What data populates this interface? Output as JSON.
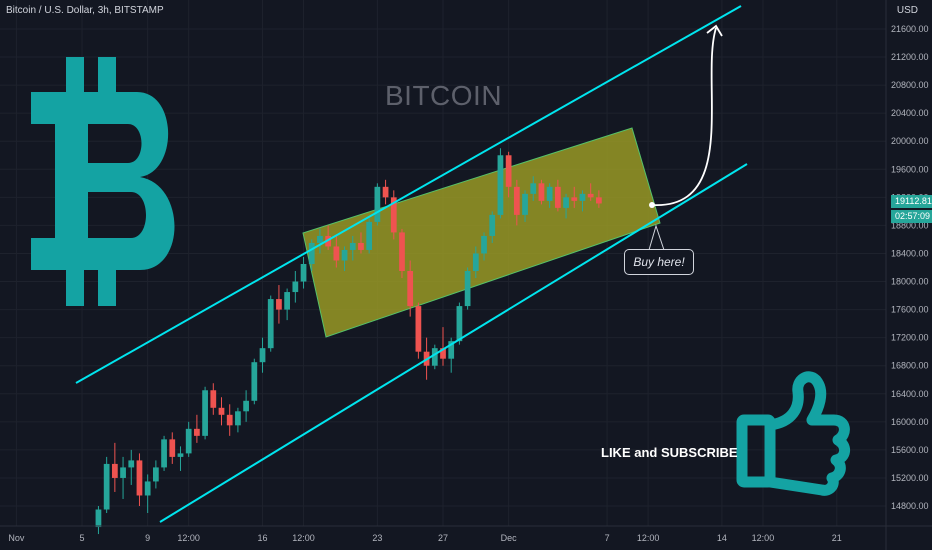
{
  "header": {
    "symbol": "Bitcoin / U.S. Dollar, 3h, BITSTAMP",
    "currency": "USD"
  },
  "annotations": {
    "watermark": "BITCOIN",
    "callout": "Buy here!",
    "cta": "LIKE and SUBSCRIBE"
  },
  "price_tags": {
    "last_price": "19112.81",
    "countdown": "02:57:09"
  },
  "colors": {
    "background": "#131722",
    "up": "#26a69a",
    "down": "#ef5350",
    "channel": "#00e5ee",
    "box_fill": "#9e9d24",
    "logo": "#14a3a3"
  },
  "icons": [
    "bitcoin-logo-icon",
    "thumbs-up-icon",
    "arrow-up-icon"
  ],
  "chart_data": {
    "type": "candlestick",
    "title": "Bitcoin / U.S. Dollar, 3h, BITSTAMP",
    "y_unit": "USD",
    "ylim": [
      14480,
      22000
    ],
    "y_ticks": [
      "21600.00",
      "21200.00",
      "20800.00",
      "20400.00",
      "20000.00",
      "19600.00",
      "19200.00",
      "18800.00",
      "18400.00",
      "18000.00",
      "17600.00",
      "17200.00",
      "16800.00",
      "16400.00",
      "16000.00",
      "15600.00",
      "15200.00",
      "14800.00"
    ],
    "x_ticks": [
      "Nov",
      "5",
      "9",
      "12:00",
      "16",
      "12:00",
      "23",
      "27",
      "Dec",
      "7",
      "12:00",
      "14",
      "12:00",
      "21"
    ],
    "x_tick_days": [
      0,
      4,
      8,
      10.5,
      15,
      17.5,
      22,
      26,
      30,
      36,
      38.5,
      43,
      45.5,
      50
    ],
    "xlim": [
      -1,
      53
    ],
    "last_price": 19112.81,
    "candles": [
      [
        5,
        14500,
        14800,
        14400,
        14750
      ],
      [
        5.5,
        14750,
        15500,
        14700,
        15400
      ],
      [
        6,
        15400,
        15700,
        15000,
        15200
      ],
      [
        6.5,
        15200,
        15500,
        14900,
        15350
      ],
      [
        7,
        15350,
        15600,
        15100,
        15450
      ],
      [
        7.5,
        15450,
        15550,
        14800,
        14950
      ],
      [
        8,
        14950,
        15250,
        14700,
        15150
      ],
      [
        8.5,
        15150,
        15450,
        15050,
        15350
      ],
      [
        9,
        15350,
        15800,
        15300,
        15750
      ],
      [
        9.5,
        15750,
        15850,
        15400,
        15500
      ],
      [
        10,
        15500,
        15650,
        15300,
        15550
      ],
      [
        10.5,
        15550,
        16000,
        15500,
        15900
      ],
      [
        11,
        15900,
        16100,
        15700,
        15800
      ],
      [
        11.5,
        15800,
        16500,
        15750,
        16450
      ],
      [
        12,
        16450,
        16550,
        16100,
        16200
      ],
      [
        12.5,
        16200,
        16350,
        15950,
        16100
      ],
      [
        13,
        16100,
        16250,
        15800,
        15950
      ],
      [
        13.5,
        15950,
        16200,
        15850,
        16150
      ],
      [
        14,
        16150,
        16450,
        16000,
        16300
      ],
      [
        14.5,
        16300,
        16900,
        16250,
        16850
      ],
      [
        15,
        16850,
        17200,
        16700,
        17050
      ],
      [
        15.5,
        17050,
        17800,
        17000,
        17750
      ],
      [
        16,
        17750,
        17950,
        17400,
        17600
      ],
      [
        16.5,
        17600,
        17900,
        17450,
        17850
      ],
      [
        17,
        17850,
        18150,
        17700,
        18000
      ],
      [
        17.5,
        18000,
        18350,
        17900,
        18250
      ],
      [
        18,
        18250,
        18600,
        18150,
        18550
      ],
      [
        18.5,
        18550,
        18750,
        18400,
        18650
      ],
      [
        19,
        18650,
        18800,
        18450,
        18500
      ],
      [
        19.5,
        18500,
        18650,
        18200,
        18300
      ],
      [
        20,
        18300,
        18500,
        18150,
        18450
      ],
      [
        20.5,
        18450,
        18650,
        18300,
        18550
      ],
      [
        21,
        18550,
        18700,
        18400,
        18450
      ],
      [
        21.5,
        18450,
        18900,
        18400,
        18850
      ],
      [
        22,
        18850,
        19400,
        18800,
        19350
      ],
      [
        22.5,
        19350,
        19450,
        19100,
        19200
      ],
      [
        23,
        19200,
        19300,
        18600,
        18700
      ],
      [
        23.5,
        18700,
        18750,
        18050,
        18150
      ],
      [
        24,
        18150,
        18300,
        17500,
        17650
      ],
      [
        24.5,
        17650,
        17700,
        16900,
        17000
      ],
      [
        25,
        17000,
        17200,
        16600,
        16800
      ],
      [
        25.5,
        16800,
        17100,
        16750,
        17050
      ],
      [
        26,
        17050,
        17350,
        16800,
        16900
      ],
      [
        26.5,
        16900,
        17200,
        16700,
        17150
      ],
      [
        27,
        17150,
        17700,
        17100,
        17650
      ],
      [
        27.5,
        17650,
        18200,
        17600,
        18150
      ],
      [
        28,
        18150,
        18500,
        18050,
        18400
      ],
      [
        28.5,
        18400,
        18700,
        18300,
        18650
      ],
      [
        29,
        18650,
        19000,
        18550,
        18950
      ],
      [
        29.5,
        18950,
        19900,
        18900,
        19800
      ],
      [
        30,
        19800,
        19850,
        19200,
        19350
      ],
      [
        30.5,
        19350,
        19450,
        18800,
        18950
      ],
      [
        31,
        18950,
        19300,
        18850,
        19250
      ],
      [
        31.5,
        19250,
        19500,
        19150,
        19400
      ],
      [
        32,
        19400,
        19450,
        19100,
        19150
      ],
      [
        32.5,
        19150,
        19400,
        19050,
        19350
      ],
      [
        33,
        19350,
        19450,
        19000,
        19050
      ],
      [
        33.5,
        19050,
        19250,
        18900,
        19200
      ],
      [
        34,
        19200,
        19350,
        19050,
        19150
      ],
      [
        34.5,
        19150,
        19300,
        19000,
        19250
      ],
      [
        35,
        19250,
        19400,
        19150,
        19200
      ],
      [
        35.5,
        19200,
        19300,
        19050,
        19112.81
      ]
    ]
  }
}
